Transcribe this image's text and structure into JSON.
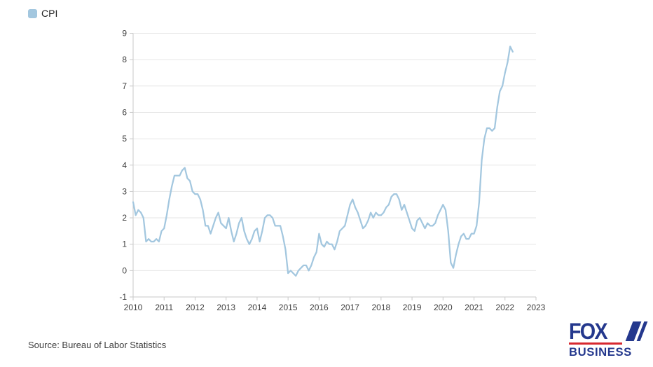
{
  "legend": {
    "label": "CPI",
    "swatch_color": "#a3c7df"
  },
  "footer": {
    "source": "Source: Bureau of Labor Statistics"
  },
  "logo": {
    "line1": "FOX",
    "line2": "BUSINESS",
    "navy": "#24388d",
    "red": "#d7282f"
  },
  "colors": {
    "line": "#a3c7df",
    "grid": "#e6e6e6",
    "axis": "#c9c9c9",
    "tick_label": "#404040"
  },
  "chart_data": {
    "type": "line",
    "title": "",
    "xlabel": "",
    "ylabel": "",
    "legend_entries": [
      "CPI"
    ],
    "legend_position": "top-left",
    "grid": true,
    "ylim": [
      -1,
      9
    ],
    "y_ticks": [
      -1,
      0,
      1,
      2,
      3,
      4,
      5,
      6,
      7,
      8,
      9
    ],
    "x_ticks": [
      2010,
      2011,
      2012,
      2013,
      2014,
      2015,
      2016,
      2017,
      2018,
      2019,
      2020,
      2021,
      2022,
      2023
    ],
    "x_start": "2010-01",
    "x_end": "2022-04",
    "frequency": "monthly",
    "series": [
      {
        "name": "CPI",
        "color": "#a3c7df",
        "values": [
          2.6,
          2.1,
          2.3,
          2.2,
          2.0,
          1.1,
          1.2,
          1.1,
          1.1,
          1.2,
          1.1,
          1.5,
          1.6,
          2.1,
          2.7,
          3.2,
          3.6,
          3.6,
          3.6,
          3.8,
          3.9,
          3.5,
          3.4,
          3.0,
          2.9,
          2.9,
          2.7,
          2.3,
          1.7,
          1.7,
          1.4,
          1.7,
          2.0,
          2.2,
          1.8,
          1.7,
          1.6,
          2.0,
          1.5,
          1.1,
          1.4,
          1.8,
          2.0,
          1.5,
          1.2,
          1.0,
          1.2,
          1.5,
          1.6,
          1.1,
          1.5,
          2.0,
          2.1,
          2.1,
          2.0,
          1.7,
          1.7,
          1.7,
          1.3,
          0.8,
          -0.1,
          0.0,
          -0.1,
          -0.2,
          0.0,
          0.1,
          0.2,
          0.2,
          0.0,
          0.2,
          0.5,
          0.7,
          1.4,
          1.0,
          0.9,
          1.1,
          1.0,
          1.0,
          0.8,
          1.1,
          1.5,
          1.6,
          1.7,
          2.1,
          2.5,
          2.7,
          2.4,
          2.2,
          1.9,
          1.6,
          1.7,
          1.9,
          2.2,
          2.0,
          2.2,
          2.1,
          2.1,
          2.2,
          2.4,
          2.5,
          2.8,
          2.9,
          2.9,
          2.7,
          2.3,
          2.5,
          2.2,
          1.9,
          1.6,
          1.5,
          1.9,
          2.0,
          1.8,
          1.6,
          1.8,
          1.7,
          1.7,
          1.8,
          2.1,
          2.3,
          2.5,
          2.3,
          1.5,
          0.3,
          0.1,
          0.6,
          1.0,
          1.3,
          1.4,
          1.2,
          1.2,
          1.4,
          1.4,
          1.7,
          2.6,
          4.2,
          5.0,
          5.4,
          5.4,
          5.3,
          5.4,
          6.2,
          6.8,
          7.0,
          7.5,
          7.9,
          8.5,
          8.3
        ]
      }
    ]
  }
}
